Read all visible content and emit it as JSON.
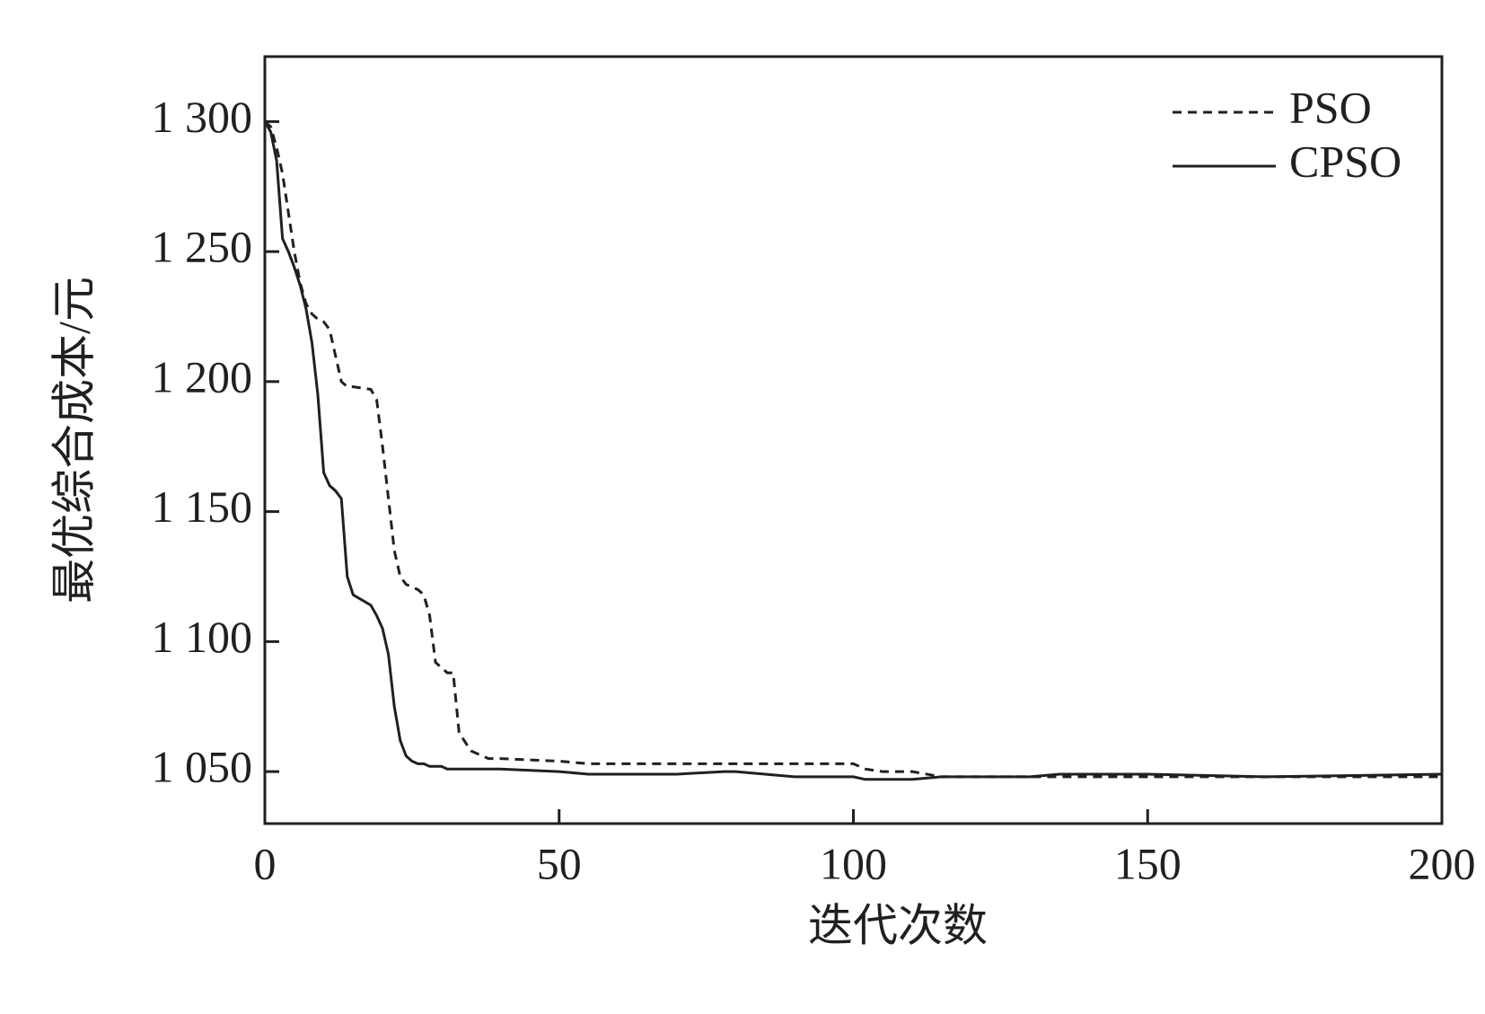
{
  "chart_data": {
    "type": "line",
    "x_label": "迭代次数",
    "y_label": "最优综合成本/元",
    "x": [
      0,
      1,
      2,
      3,
      4,
      5,
      6,
      7,
      8,
      9,
      10,
      11,
      12,
      13,
      14,
      15,
      18,
      19,
      20,
      21,
      22,
      23,
      24,
      25,
      26,
      27,
      28,
      29,
      30,
      31,
      32,
      33,
      35,
      38,
      40,
      50,
      55,
      60,
      70,
      78,
      80,
      85,
      90,
      98,
      100,
      102,
      105,
      110,
      115,
      120,
      130,
      135,
      150,
      170,
      200
    ],
    "series": [
      {
        "name": "PSO",
        "color": "#231f20",
        "dash": true,
        "values": [
          1300,
          1298,
          1290,
          1280,
          1265,
          1250,
          1238,
          1230,
          1226,
          1224,
          1223,
          1220,
          1210,
          1200,
          1198,
          1198,
          1197,
          1193,
          1175,
          1155,
          1135,
          1125,
          1122,
          1121,
          1120,
          1118,
          1110,
          1092,
          1090,
          1088,
          1088,
          1065,
          1058,
          1055,
          1055,
          1054,
          1053,
          1053,
          1053,
          1053,
          1053,
          1053,
          1053,
          1053,
          1053,
          1051,
          1050,
          1050,
          1048,
          1048,
          1048,
          1048,
          1048,
          1048,
          1048
        ]
      },
      {
        "name": "CPSO",
        "color": "#231f20",
        "dash": false,
        "values": [
          1300,
          1296,
          1285,
          1255,
          1250,
          1244,
          1237,
          1228,
          1215,
          1195,
          1165,
          1160,
          1158,
          1155,
          1125,
          1118,
          1114,
          1110,
          1105,
          1095,
          1075,
          1062,
          1056,
          1054,
          1053,
          1053,
          1052,
          1052,
          1052,
          1051,
          1051,
          1051,
          1051,
          1051,
          1051,
          1050,
          1049,
          1049,
          1049,
          1050,
          1050,
          1049,
          1048,
          1048,
          1048,
          1047,
          1047,
          1047,
          1048,
          1048,
          1048,
          1049,
          1049,
          1048,
          1049
        ]
      }
    ],
    "xlim": [
      0,
      200
    ],
    "ylim": [
      1030,
      1325
    ],
    "xticks": [
      0,
      50,
      100,
      150,
      200
    ],
    "yticks": [
      {
        "value": 1050,
        "label": "1 050"
      },
      {
        "value": 1100,
        "label": "1 100"
      },
      {
        "value": 1150,
        "label": "1 150"
      },
      {
        "value": 1200,
        "label": "1 200"
      },
      {
        "value": 1250,
        "label": "1 250"
      },
      {
        "value": 1300,
        "label": "1 300"
      }
    ],
    "legend": "upper right"
  }
}
